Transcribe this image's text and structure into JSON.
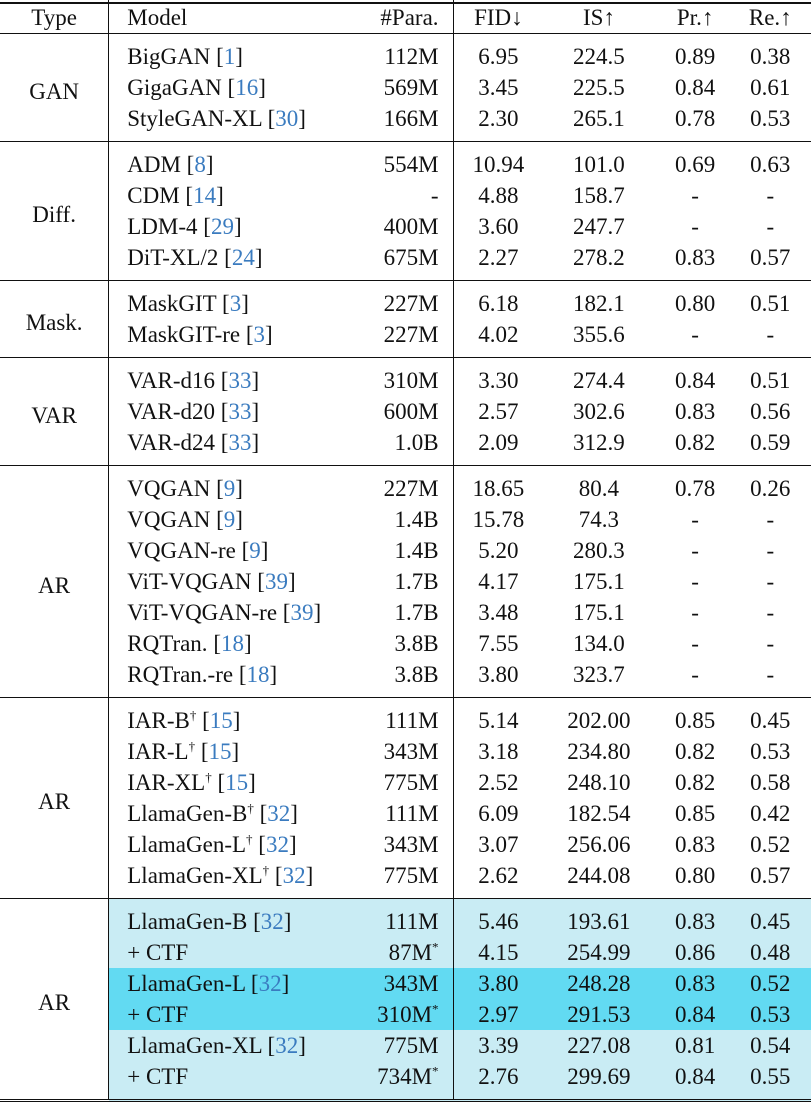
{
  "table": {
    "columns": [
      "Type",
      "Model",
      "#Para.",
      "FID↓",
      "IS↑",
      "Pr.↑",
      "Re.↑"
    ],
    "sections": [
      {
        "type": "GAN",
        "rows": [
          {
            "model": "BigGAN",
            "dagger": "",
            "cite": "1",
            "para": "112M",
            "para_star": "",
            "fid": "6.95",
            "is": "224.5",
            "pr": "0.89",
            "re": "0.38"
          },
          {
            "model": "GigaGAN",
            "dagger": "",
            "cite": "16",
            "para": "569M",
            "para_star": "",
            "fid": "3.45",
            "is": "225.5",
            "pr": "0.84",
            "re": "0.61"
          },
          {
            "model": "StyleGAN-XL",
            "dagger": "",
            "cite": "30",
            "para": "166M",
            "para_star": "",
            "fid": "2.30",
            "is": "265.1",
            "pr": "0.78",
            "re": "0.53"
          }
        ]
      },
      {
        "type": "Diff.",
        "rows": [
          {
            "model": "ADM",
            "dagger": "",
            "cite": "8",
            "para": "554M",
            "para_star": "",
            "fid": "10.94",
            "is": "101.0",
            "pr": "0.69",
            "re": "0.63"
          },
          {
            "model": "CDM",
            "dagger": "",
            "cite": "14",
            "para": "-",
            "para_star": "",
            "fid": "4.88",
            "is": "158.7",
            "pr": "-",
            "re": "-"
          },
          {
            "model": "LDM-4",
            "dagger": "",
            "cite": "29",
            "para": "400M",
            "para_star": "",
            "fid": "3.60",
            "is": "247.7",
            "pr": "-",
            "re": "-"
          },
          {
            "model": "DiT-XL/2",
            "dagger": "",
            "cite": "24",
            "para": "675M",
            "para_star": "",
            "fid": "2.27",
            "is": "278.2",
            "pr": "0.83",
            "re": "0.57"
          }
        ]
      },
      {
        "type": "Mask.",
        "rows": [
          {
            "model": "MaskGIT",
            "dagger": "",
            "cite": "3",
            "para": "227M",
            "para_star": "",
            "fid": "6.18",
            "is": "182.1",
            "pr": "0.80",
            "re": "0.51"
          },
          {
            "model": "MaskGIT-re",
            "dagger": "",
            "cite": "3",
            "para": "227M",
            "para_star": "",
            "fid": "4.02",
            "is": "355.6",
            "pr": "-",
            "re": "-"
          }
        ]
      },
      {
        "type": "VAR",
        "rows": [
          {
            "model": "VAR-d16",
            "dagger": "",
            "cite": "33",
            "para": "310M",
            "para_star": "",
            "fid": "3.30",
            "is": "274.4",
            "pr": "0.84",
            "re": "0.51"
          },
          {
            "model": "VAR-d20",
            "dagger": "",
            "cite": "33",
            "para": "600M",
            "para_star": "",
            "fid": "2.57",
            "is": "302.6",
            "pr": "0.83",
            "re": "0.56"
          },
          {
            "model": "VAR-d24",
            "dagger": "",
            "cite": "33",
            "para": "1.0B",
            "para_star": "",
            "fid": "2.09",
            "is": "312.9",
            "pr": "0.82",
            "re": "0.59"
          }
        ]
      },
      {
        "type": "AR",
        "rows": [
          {
            "model": "VQGAN",
            "dagger": "",
            "cite": "9",
            "para": "227M",
            "para_star": "",
            "fid": "18.65",
            "is": "80.4",
            "pr": "0.78",
            "re": "0.26"
          },
          {
            "model": "VQGAN",
            "dagger": "",
            "cite": "9",
            "para": "1.4B",
            "para_star": "",
            "fid": "15.78",
            "is": "74.3",
            "pr": "-",
            "re": "-"
          },
          {
            "model": "VQGAN-re",
            "dagger": "",
            "cite": "9",
            "para": "1.4B",
            "para_star": "",
            "fid": "5.20",
            "is": "280.3",
            "pr": "-",
            "re": "-"
          },
          {
            "model": "ViT-VQGAN",
            "dagger": "",
            "cite": "39",
            "para": "1.7B",
            "para_star": "",
            "fid": "4.17",
            "is": "175.1",
            "pr": "-",
            "re": "-"
          },
          {
            "model": "ViT-VQGAN-re",
            "dagger": "",
            "cite": "39",
            "para": "1.7B",
            "para_star": "",
            "fid": "3.48",
            "is": "175.1",
            "pr": "-",
            "re": "-"
          },
          {
            "model": "RQTran.",
            "dagger": "",
            "cite": "18",
            "para": "3.8B",
            "para_star": "",
            "fid": "7.55",
            "is": "134.0",
            "pr": "-",
            "re": "-"
          },
          {
            "model": "RQTran.-re",
            "dagger": "",
            "cite": "18",
            "para": "3.8B",
            "para_star": "",
            "fid": "3.80",
            "is": "323.7",
            "pr": "-",
            "re": "-"
          }
        ]
      },
      {
        "type": "AR",
        "rows": [
          {
            "model": "IAR-B",
            "dagger": "†",
            "cite": "15",
            "para": "111M",
            "para_star": "",
            "fid": "5.14",
            "is": "202.00",
            "pr": "0.85",
            "re": "0.45"
          },
          {
            "model": "IAR-L",
            "dagger": "†",
            "cite": "15",
            "para": "343M",
            "para_star": "",
            "fid": "3.18",
            "is": "234.80",
            "pr": "0.82",
            "re": "0.53"
          },
          {
            "model": "IAR-XL",
            "dagger": "†",
            "cite": "15",
            "para": "775M",
            "para_star": "",
            "fid": "2.52",
            "is": "248.10",
            "pr": "0.82",
            "re": "0.58"
          },
          {
            "model": "LlamaGen-B",
            "dagger": "†",
            "cite": "32",
            "para": "111M",
            "para_star": "",
            "fid": "6.09",
            "is": "182.54",
            "pr": "0.85",
            "re": "0.42"
          },
          {
            "model": "LlamaGen-L",
            "dagger": "†",
            "cite": "32",
            "para": "343M",
            "para_star": "",
            "fid": "3.07",
            "is": "256.06",
            "pr": "0.83",
            "re": "0.52"
          },
          {
            "model": "LlamaGen-XL",
            "dagger": "†",
            "cite": "32",
            "para": "775M",
            "para_star": "",
            "fid": "2.62",
            "is": "244.08",
            "pr": "0.80",
            "re": "0.57"
          }
        ]
      },
      {
        "type": "AR",
        "rows": [
          {
            "model": "LlamaGen-B",
            "dagger": "",
            "cite": "32",
            "para": "111M",
            "para_star": "",
            "fid": "5.46",
            "is": "193.61",
            "pr": "0.83",
            "re": "0.45",
            "highlight": "light"
          },
          {
            "model": "+ CTF",
            "dagger": "",
            "cite": "",
            "para": "87M",
            "para_star": "*",
            "fid": "4.15",
            "is": "254.99",
            "pr": "0.86",
            "re": "0.48",
            "highlight": "light"
          },
          {
            "model": "LlamaGen-L",
            "dagger": "",
            "cite": "32",
            "para": "343M",
            "para_star": "",
            "fid": "3.80",
            "is": "248.28",
            "pr": "0.83",
            "re": "0.52",
            "highlight": "dark"
          },
          {
            "model": "+ CTF",
            "dagger": "",
            "cite": "",
            "para": "310M",
            "para_star": "*",
            "fid": "2.97",
            "is": "291.53",
            "pr": "0.84",
            "re": "0.53",
            "highlight": "dark"
          },
          {
            "model": "LlamaGen-XL",
            "dagger": "",
            "cite": "32",
            "para": "775M",
            "para_star": "",
            "fid": "3.39",
            "is": "227.08",
            "pr": "0.81",
            "re": "0.54",
            "highlight": "light"
          },
          {
            "model": "+ CTF",
            "dagger": "",
            "cite": "",
            "para": "734M",
            "para_star": "*",
            "fid": "2.76",
            "is": "299.69",
            "pr": "0.84",
            "re": "0.55",
            "highlight": "light"
          }
        ]
      }
    ]
  },
  "colors": {
    "citation": "#3a7bbf",
    "highlight_light": "#c9ecf4",
    "highlight_dark": "#62daf2"
  }
}
